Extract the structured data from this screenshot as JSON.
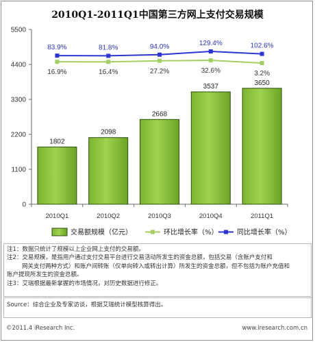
{
  "chart_data": {
    "type": "bar",
    "title": "2010Q1-2011Q1中国第三方网上支付交易规模",
    "categories": [
      "2010Q1",
      "2010Q2",
      "2010Q3",
      "2010Q4",
      "2011Q1"
    ],
    "series": [
      {
        "name": "交易额规模（亿元）",
        "type": "bar",
        "values": [
          1802,
          2098,
          2668,
          3537,
          3650
        ],
        "labels": [
          "1802",
          "2098",
          "2668",
          "3537",
          "3650"
        ],
        "color": "#8dc63f"
      },
      {
        "name": "环比增长率（%）",
        "type": "line",
        "values": [
          16.9,
          16.4,
          27.2,
          32.6,
          3.2
        ],
        "labels": [
          "16.9%",
          "16.4%",
          "27.2%",
          "32.6%",
          "3.2%"
        ],
        "color": "#a3cf62"
      },
      {
        "name": "同比增长率（%）",
        "type": "line",
        "values": [
          83.9,
          81.8,
          94.0,
          129.4,
          102.6
        ],
        "labels": [
          "83.9%",
          "81.8%",
          "94.0%",
          "129.4%",
          "102.6%"
        ],
        "color": "#2b35d6"
      }
    ],
    "yticks": [
      "0",
      "1100",
      "2200",
      "3300",
      "4400",
      "5500"
    ],
    "ylim": [
      0,
      5500
    ],
    "legend_position": "bottom",
    "grid": false
  },
  "notes": [
    "注1：数据只统计了规模以上企业网上支付的交易额。",
    "注2：交易规模，是指用户通过支付交易平台进行交易活动所发生的资金总额，包括交易（含账户支付和",
    "网关支付两种方式）和账户间转账（仅单向转入或转出计算）所发生的资金总额，但不包括为账户充值和",
    "账户提现所发生的资金总额。",
    "注3：艾瑞根据最新掌握的市场情况，对历史数据进行修正。"
  ],
  "source": "Source：综合企业及专家访谈，根据艾瑞统计模型核算得出。",
  "footer": {
    "copyright": "©2011.4 iResearch Inc.",
    "url": "www.iresearch.com.cn"
  }
}
